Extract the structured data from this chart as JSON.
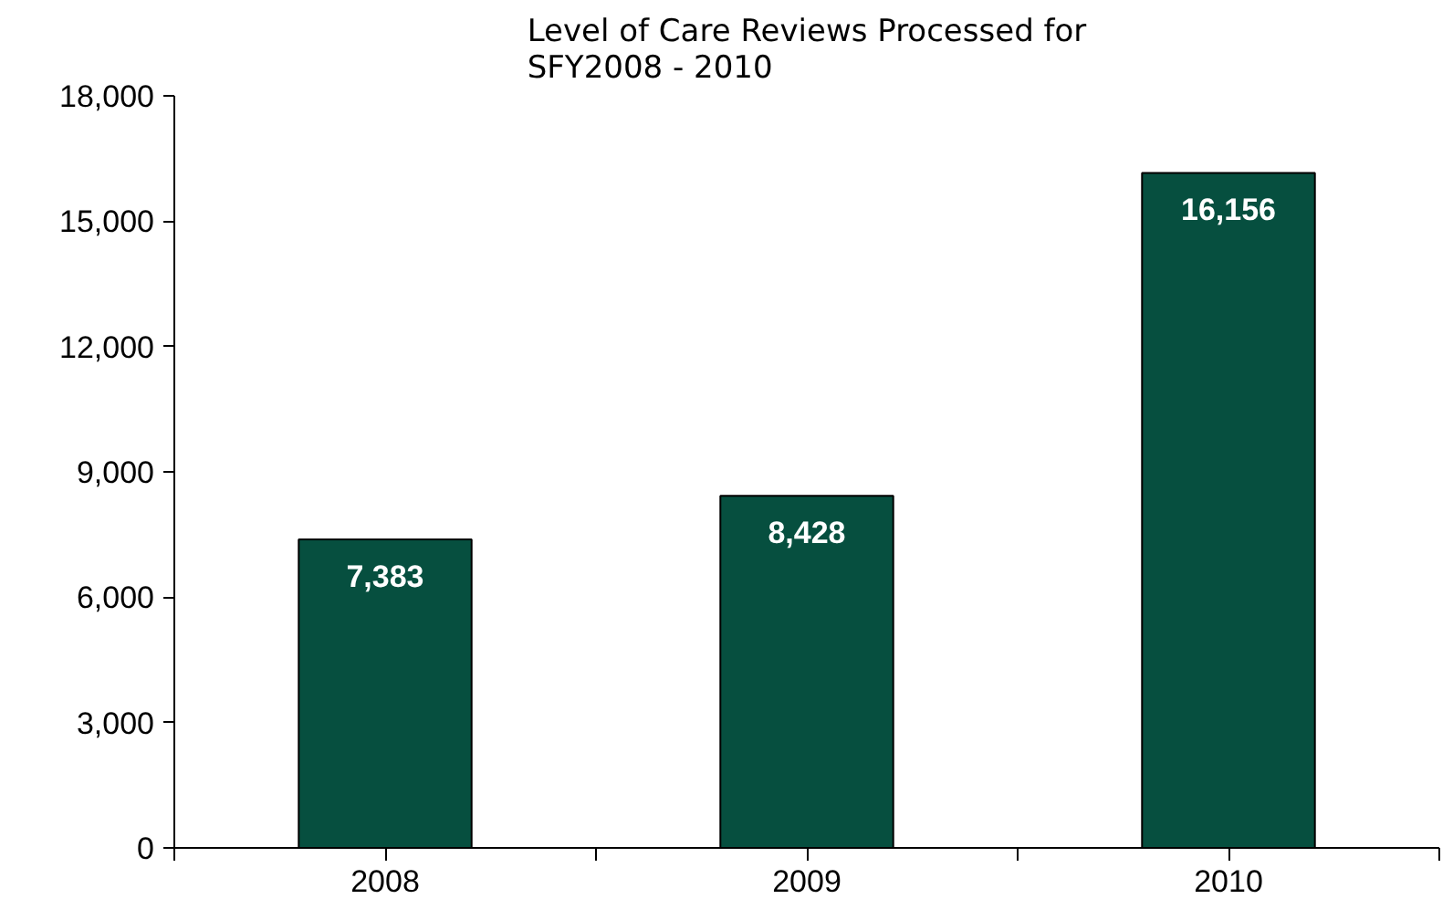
{
  "chart_data": {
    "type": "bar",
    "title": "Level of Care Reviews Processed for\nSFY2008 - 2010",
    "categories": [
      "2008",
      "2009",
      "2010"
    ],
    "values": [
      7383,
      8428,
      16156
    ],
    "value_labels": [
      "7,383",
      "8,428",
      "16,156"
    ],
    "color": "#064f3f",
    "ylim": [
      0,
      18000
    ],
    "yticks": [
      {
        "value": 0,
        "label": "0"
      },
      {
        "value": 3000,
        "label": "3,000"
      },
      {
        "value": 6000,
        "label": "6,000"
      },
      {
        "value": 9000,
        "label": "9,000"
      },
      {
        "value": 12000,
        "label": "12,000"
      },
      {
        "value": 15000,
        "label": "15,000"
      },
      {
        "value": 18000,
        "label": "18,000"
      }
    ],
    "grid": false
  }
}
